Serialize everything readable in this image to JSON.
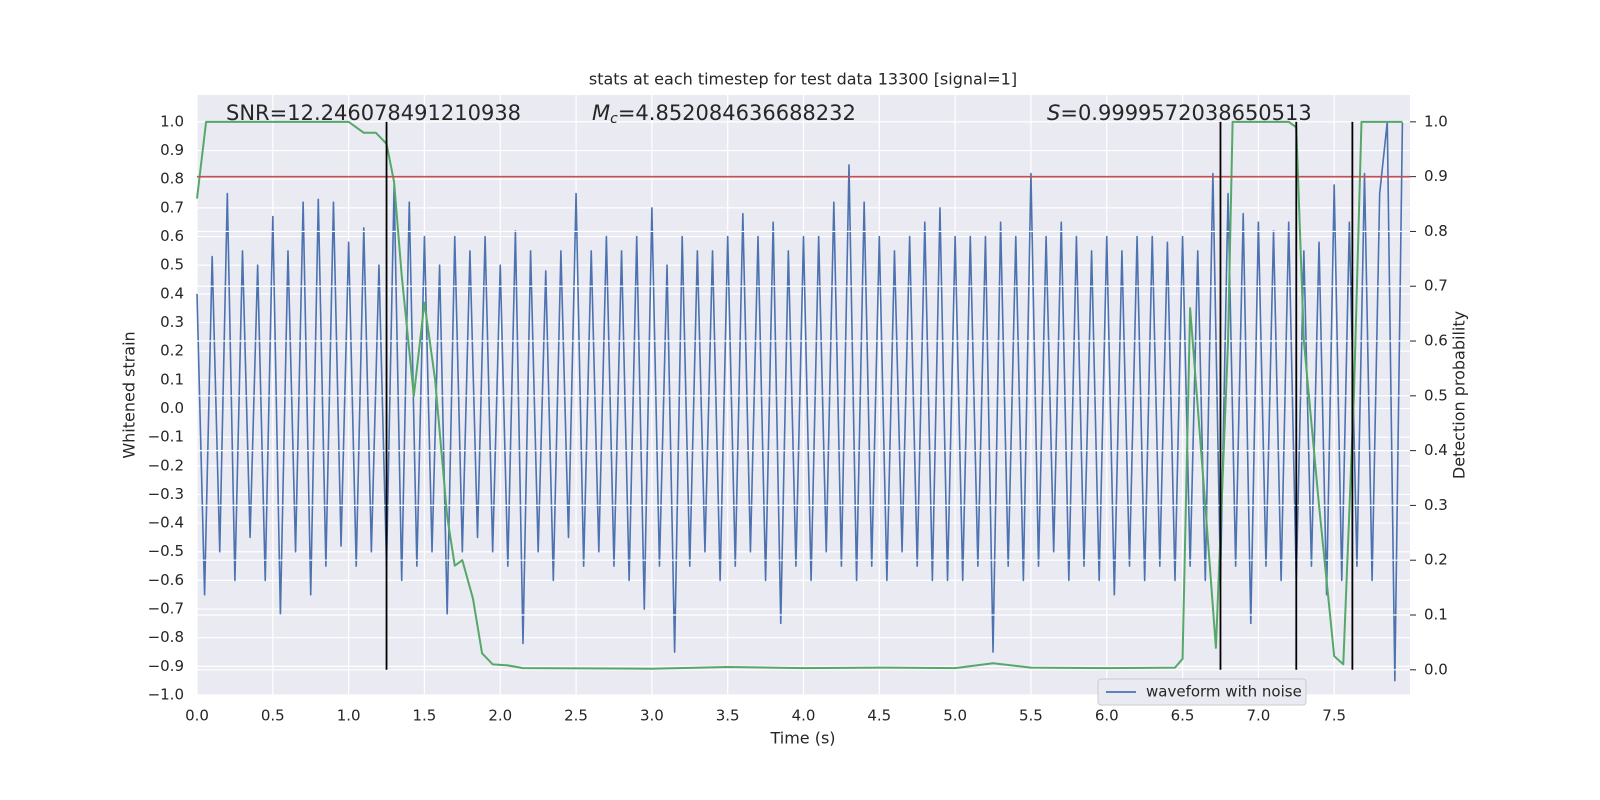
{
  "chart_data": {
    "type": "line",
    "title": "stats at each timestep for test data 13300 [signal=1]",
    "x_label": "Time (s)",
    "y_label": "Whitened strain",
    "y2_label": "Detection probability",
    "annotations": {
      "snr": "SNR=12.246078491210938",
      "mc_symbol": "M",
      "mc_subscript": "c",
      "mc_text": "=4.852084636688232",
      "s_symbol": "S",
      "s_text": "=0.9999572038650513"
    },
    "xlim": [
      0,
      8
    ],
    "ylim": [
      -1.0,
      1.094
    ],
    "y2lim": [
      -0.046,
      1.049
    ],
    "xticks": [
      {
        "value": 0,
        "label": "0.0"
      },
      {
        "value": 0.5,
        "label": "0.5"
      },
      {
        "value": 1,
        "label": "1.0"
      },
      {
        "value": 1.5,
        "label": "1.5"
      },
      {
        "value": 2,
        "label": "2.0"
      },
      {
        "value": 2.5,
        "label": "2.5"
      },
      {
        "value": 3,
        "label": "3.0"
      },
      {
        "value": 3.5,
        "label": "3.5"
      },
      {
        "value": 4,
        "label": "4.0"
      },
      {
        "value": 4.5,
        "label": "4.5"
      },
      {
        "value": 5,
        "label": "5.0"
      },
      {
        "value": 5.5,
        "label": "5.5"
      },
      {
        "value": 6,
        "label": "6.0"
      },
      {
        "value": 6.5,
        "label": "6.5"
      },
      {
        "value": 7,
        "label": "7.0"
      },
      {
        "value": 7.5,
        "label": "7.5"
      }
    ],
    "yticks": [
      {
        "value": -1,
        "label": "−1.0"
      },
      {
        "value": -0.9,
        "label": "−0.9"
      },
      {
        "value": -0.8,
        "label": "−0.8"
      },
      {
        "value": -0.7,
        "label": "−0.7"
      },
      {
        "value": -0.6,
        "label": "−0.6"
      },
      {
        "value": -0.5,
        "label": "−0.5"
      },
      {
        "value": -0.4,
        "label": "−0.4"
      },
      {
        "value": -0.3,
        "label": "−0.3"
      },
      {
        "value": -0.2,
        "label": "−0.2"
      },
      {
        "value": -0.1,
        "label": "−0.1"
      },
      {
        "value": 0,
        "label": "0.0"
      },
      {
        "value": 0.1,
        "label": "0.1"
      },
      {
        "value": 0.2,
        "label": "0.2"
      },
      {
        "value": 0.3,
        "label": "0.3"
      },
      {
        "value": 0.4,
        "label": "0.4"
      },
      {
        "value": 0.5,
        "label": "0.5"
      },
      {
        "value": 0.6,
        "label": "0.6"
      },
      {
        "value": 0.7,
        "label": "0.7"
      },
      {
        "value": 0.8,
        "label": "0.8"
      },
      {
        "value": 0.9,
        "label": "0.9"
      },
      {
        "value": 1,
        "label": "1.0"
      }
    ],
    "y2ticks": [
      {
        "value": 0,
        "label": "0.0"
      },
      {
        "value": 0.1,
        "label": "0.1"
      },
      {
        "value": 0.2,
        "label": "0.2"
      },
      {
        "value": 0.3,
        "label": "0.3"
      },
      {
        "value": 0.4,
        "label": "0.4"
      },
      {
        "value": 0.5,
        "label": "0.5"
      },
      {
        "value": 0.6,
        "label": "0.6"
      },
      {
        "value": 0.7,
        "label": "0.7"
      },
      {
        "value": 0.8,
        "label": "0.8"
      },
      {
        "value": 0.9,
        "label": "0.9"
      },
      {
        "value": 1,
        "label": "1.0"
      }
    ],
    "grid": true,
    "legend_position": "lower right",
    "threshold": {
      "axis": "y2",
      "value": 0.9,
      "color": "#c44e52"
    },
    "vlines": {
      "x": [
        1.25,
        6.75,
        7.25,
        7.62
      ],
      "ymin": 0,
      "ymax": 1,
      "axis": "y2",
      "color": "#000000"
    },
    "series": [
      {
        "name": "waveform with noise",
        "color": "#4c72b0",
        "x": [
          0,
          0.05,
          0.1,
          0.15,
          0.2,
          0.25,
          0.3,
          0.35,
          0.4,
          0.45,
          0.5,
          0.55,
          0.6,
          0.65,
          0.7,
          0.75,
          0.8,
          0.85,
          0.9,
          0.95,
          1,
          1.05,
          1.1,
          1.15,
          1.2,
          1.25,
          1.3,
          1.35,
          1.4,
          1.45,
          1.5,
          1.55,
          1.6,
          1.65,
          1.7,
          1.75,
          1.8,
          1.85,
          1.9,
          1.95,
          2,
          2.05,
          2.1,
          2.15,
          2.2,
          2.25,
          2.3,
          2.35,
          2.4,
          2.45,
          2.5,
          2.55,
          2.6,
          2.65,
          2.7,
          2.75,
          2.8,
          2.85,
          2.9,
          2.95,
          3,
          3.05,
          3.1,
          3.15,
          3.2,
          3.25,
          3.3,
          3.35,
          3.4,
          3.45,
          3.5,
          3.55,
          3.6,
          3.65,
          3.7,
          3.75,
          3.8,
          3.85,
          3.9,
          3.95,
          4,
          4.05,
          4.1,
          4.15,
          4.2,
          4.25,
          4.3,
          4.35,
          4.4,
          4.45,
          4.5,
          4.55,
          4.6,
          4.65,
          4.7,
          4.75,
          4.8,
          4.85,
          4.9,
          4.95,
          5,
          5.05,
          5.1,
          5.15,
          5.2,
          5.25,
          5.3,
          5.35,
          5.4,
          5.45,
          5.5,
          5.55,
          5.6,
          5.65,
          5.7,
          5.75,
          5.8,
          5.85,
          5.9,
          5.95,
          6,
          6.05,
          6.1,
          6.15,
          6.2,
          6.25,
          6.3,
          6.35,
          6.4,
          6.45,
          6.5,
          6.55,
          6.6,
          6.65,
          6.7,
          6.75,
          6.8,
          6.85,
          6.9,
          6.95,
          7,
          7.05,
          7.1,
          7.15,
          7.2,
          7.25,
          7.3,
          7.35,
          7.4,
          7.45,
          7.5,
          7.55,
          7.6,
          7.65,
          7.7,
          7.75,
          7.8,
          7.85,
          7.9,
          7.95
        ],
        "values": [
          0.4,
          -0.65,
          0.53,
          -0.5,
          0.75,
          -0.6,
          0.55,
          -0.45,
          0.5,
          -0.6,
          0.67,
          -0.72,
          0.55,
          -0.5,
          0.72,
          -0.65,
          0.73,
          -0.55,
          0.72,
          -0.48,
          0.58,
          -0.55,
          0.63,
          -0.5,
          0.5,
          -0.55,
          0.78,
          -0.6,
          0.72,
          -0.55,
          0.6,
          -0.5,
          0.5,
          -0.72,
          0.6,
          -0.5,
          0.55,
          -0.45,
          0.6,
          -0.5,
          0.5,
          -0.55,
          0.62,
          -0.82,
          0.55,
          -0.5,
          0.48,
          -0.6,
          0.55,
          -0.45,
          0.75,
          -0.55,
          0.55,
          -0.5,
          0.6,
          -0.55,
          0.55,
          -0.6,
          0.6,
          -0.7,
          0.7,
          -0.55,
          0.5,
          -0.85,
          0.6,
          -0.55,
          0.55,
          -0.5,
          0.55,
          -0.6,
          0.6,
          -0.55,
          0.68,
          -0.5,
          0.6,
          -0.6,
          0.65,
          -0.75,
          0.55,
          -0.55,
          0.6,
          -0.6,
          0.6,
          -0.5,
          0.72,
          -0.55,
          0.85,
          -0.6,
          0.72,
          -0.55,
          0.6,
          -0.6,
          0.55,
          -0.5,
          0.6,
          -0.55,
          0.65,
          -0.6,
          0.7,
          -0.6,
          0.6,
          -0.6,
          0.6,
          -0.55,
          0.6,
          -0.85,
          0.65,
          -0.55,
          0.6,
          -0.6,
          0.82,
          -0.55,
          0.6,
          -0.5,
          0.65,
          -0.6,
          0.6,
          -0.55,
          0.55,
          -0.6,
          0.6,
          -0.65,
          0.55,
          -0.55,
          0.6,
          -0.6,
          0.6,
          -0.55,
          0.58,
          -0.6,
          0.6,
          -0.55,
          0.55,
          -0.6,
          0.82,
          -0.6,
          0.75,
          -0.55,
          0.68,
          -0.75,
          0.65,
          -0.55,
          0.62,
          -0.6,
          0.65,
          -0.6,
          0.55,
          -0.55,
          0.58,
          -0.65,
          0.78,
          -0.6,
          0.65,
          -0.55,
          0.82,
          -0.6,
          0.75,
          1.0,
          -0.95,
          1.0
        ]
      },
      {
        "color": "#55a868",
        "axis": "y2",
        "x": [
          0,
          0.06,
          1.0,
          1.1,
          1.18,
          1.25,
          1.3,
          1.35,
          1.43,
          1.5,
          1.57,
          1.65,
          1.7,
          1.75,
          1.82,
          1.88,
          1.95,
          2.05,
          2.15,
          3.0,
          3.5,
          4.0,
          4.5,
          5.0,
          5.25,
          5.5,
          6.0,
          6.45,
          6.5,
          6.55,
          6.65,
          6.72,
          6.8,
          6.83,
          7.2,
          7.25,
          7.3,
          7.4,
          7.5,
          7.56,
          7.63,
          7.68,
          7.95
        ],
        "values": [
          0.86,
          1.0,
          1.0,
          0.98,
          0.98,
          0.96,
          0.89,
          0.72,
          0.5,
          0.67,
          0.53,
          0.28,
          0.19,
          0.2,
          0.13,
          0.03,
          0.01,
          0.008,
          0.003,
          0.002,
          0.005,
          0.003,
          0.004,
          0.003,
          0.012,
          0.004,
          0.003,
          0.004,
          0.02,
          0.66,
          0.3,
          0.04,
          0.6,
          1.0,
          1.0,
          0.99,
          0.6,
          0.3,
          0.025,
          0.01,
          0.5,
          1.0,
          1.0
        ]
      }
    ]
  }
}
